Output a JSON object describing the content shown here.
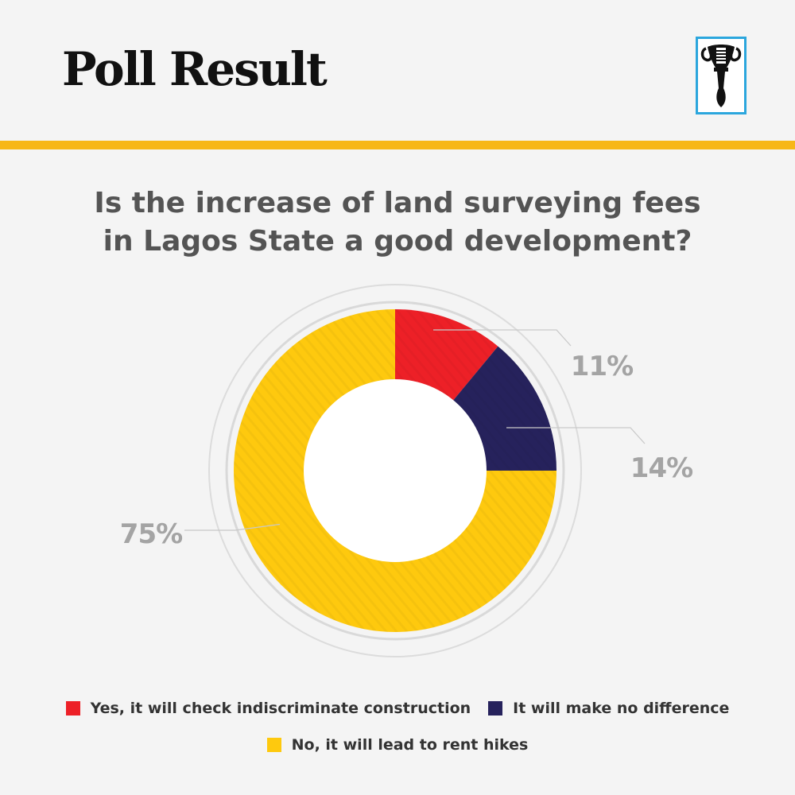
{
  "header": {
    "title": "Poll Result",
    "logo": "torch-emblem-icon",
    "accent_color": "#f7b718"
  },
  "question": {
    "lines": [
      "Is the increase of land surveying fees",
      "in Lagos State a good development?"
    ]
  },
  "chart_data": {
    "type": "pie",
    "variant": "donut",
    "title": "Is the increase of land surveying fees in Lagos State a good development?",
    "slices": [
      {
        "name": "Yes, it will check indiscriminate construction",
        "value": 11,
        "label": "11%",
        "color": "#ed2027"
      },
      {
        "name": "It will make no difference",
        "value": 14,
        "label": "14%",
        "color": "#26225c"
      },
      {
        "name": "No, it will lead to rent hikes",
        "value": 75,
        "label": "75%",
        "color": "#fec90e"
      }
    ],
    "legend_position": "bottom"
  }
}
